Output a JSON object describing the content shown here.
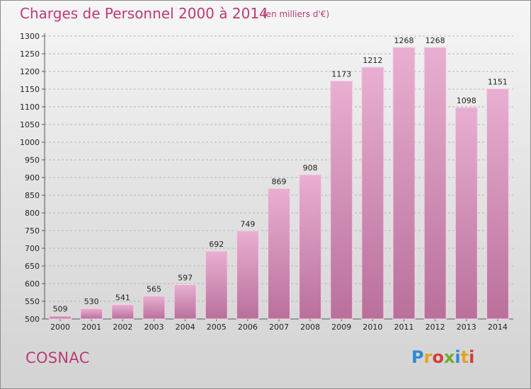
{
  "header": {
    "title": "Charges de Personnel 2000 à 2014",
    "subtitle": "(en milliers d'€)"
  },
  "footer": {
    "commune": "COSNAC",
    "logo_text": "Proxiti",
    "logo_colors": [
      "#2f8ad4",
      "#e8a21c",
      "#d43c3c",
      "#6fae2e",
      "#2f8ad4",
      "#e8a21c",
      "#d43c3c"
    ]
  },
  "colors": {
    "accent": "#bb3a77",
    "bar_top": "#e9afd2",
    "bar_bottom": "#b9709b"
  },
  "chart_data": {
    "type": "bar",
    "title": "Charges de Personnel 2000 à 2014",
    "subtitle": "(en milliers d'€)",
    "categories": [
      "2000",
      "2001",
      "2002",
      "2003",
      "2004",
      "2005",
      "2006",
      "2007",
      "2008",
      "2009",
      "2010",
      "2011",
      "2012",
      "2013",
      "2014"
    ],
    "values": [
      509,
      530,
      541,
      565,
      597,
      692,
      749,
      869,
      908,
      1173,
      1212,
      1268,
      1268,
      1098,
      1151
    ],
    "ylim": [
      500,
      1300
    ],
    "ytick_step": 50,
    "grid": "horizontal-dashed",
    "legend": "none"
  }
}
